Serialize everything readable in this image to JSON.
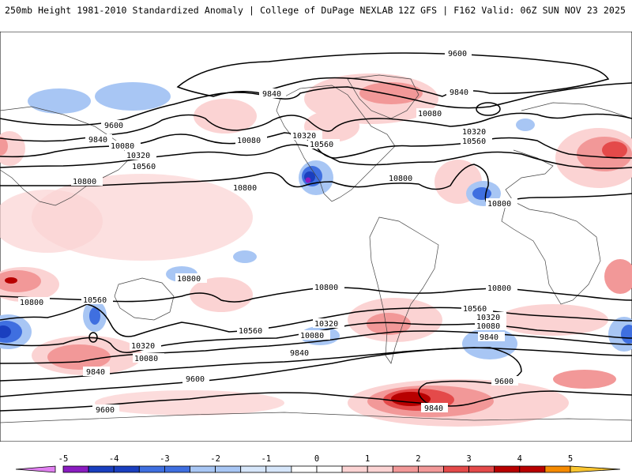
{
  "header": {
    "left": "250mb Height 1981-2010 Standardized Anomaly | College of DuPage NEXLAB",
    "right": "12Z GFS | F162 Valid: 06Z SUN NOV 23 2025"
  },
  "contour_labels": [
    "9600",
    "9840",
    "10080",
    "10320",
    "10560",
    "10800"
  ],
  "colorbar": {
    "ticks": [
      "-5",
      "-4",
      "-3",
      "-2",
      "-1",
      "0",
      "1",
      "2",
      "3",
      "4",
      "5"
    ],
    "colors": [
      "#e080f0",
      "#8a1cc0",
      "#1a3fbf",
      "#3f6fe0",
      "#a8c6f4",
      "#d6e6fa",
      "#ffffff",
      "#fbd3d3",
      "#f29898",
      "#e44a4a",
      "#b80000",
      "#f58a00",
      "#f9c530"
    ]
  }
}
